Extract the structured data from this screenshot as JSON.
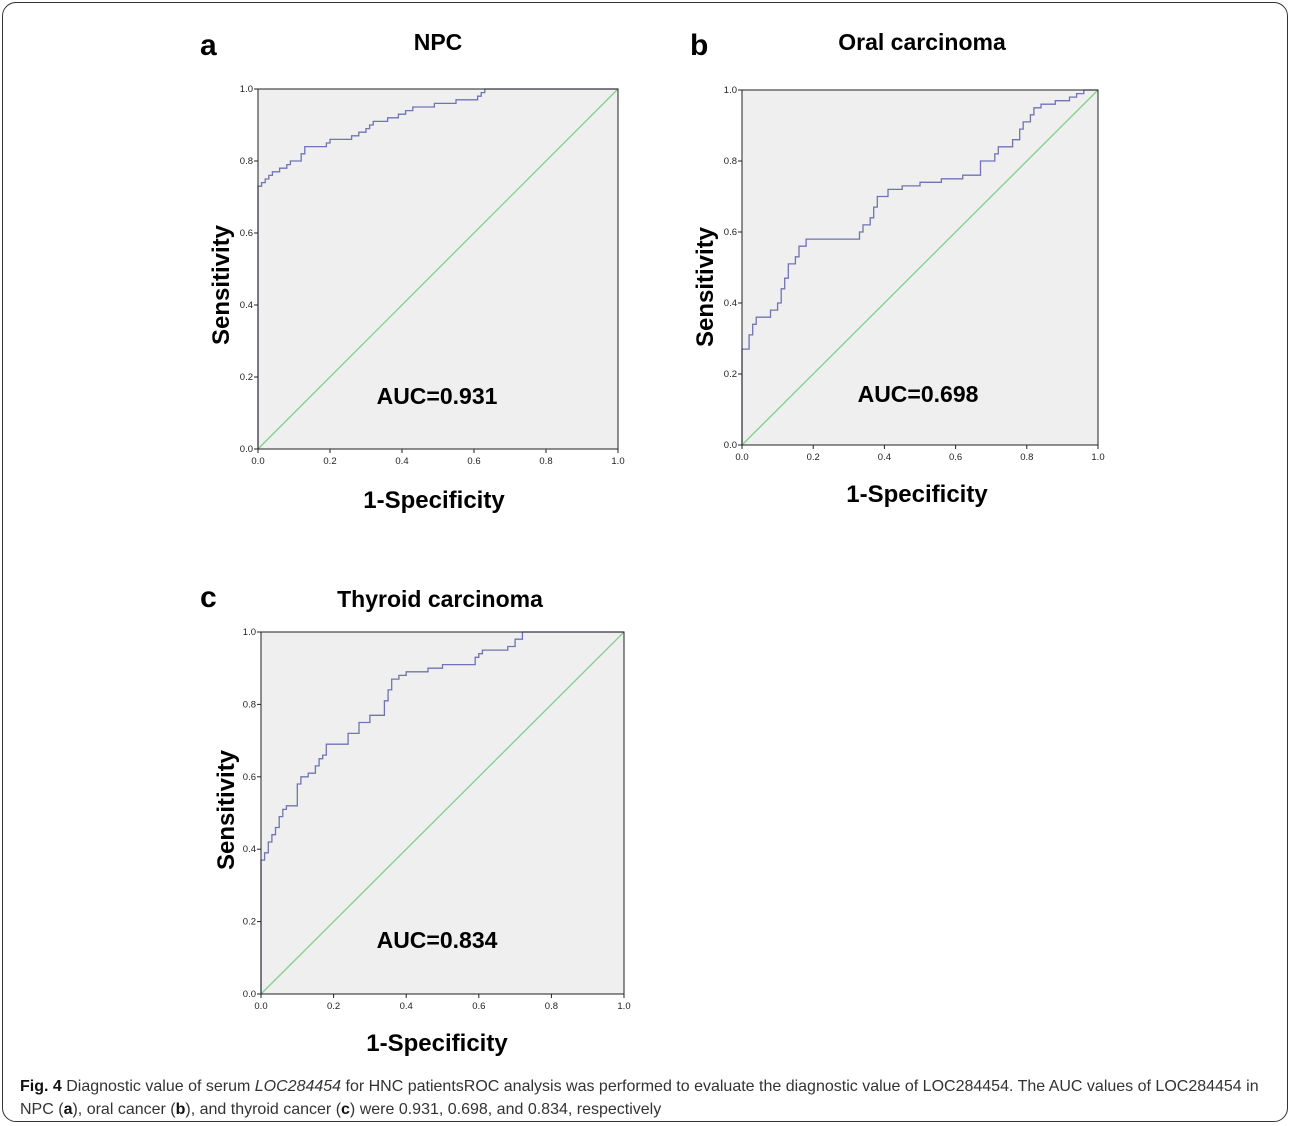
{
  "chart_data": [
    {
      "type": "line",
      "panel_letter": "a",
      "title": "NPC",
      "xlabel": "1-Specificity",
      "ylabel": "Sensitivity",
      "annotation": "AUC=0.931",
      "xlim": [
        0.0,
        1.0
      ],
      "ylim": [
        0.0,
        1.0
      ],
      "xticks": [
        "0.0",
        "0.2",
        "0.4",
        "0.6",
        "0.8",
        "1.0"
      ],
      "yticks": [
        "0.0",
        "0.2",
        "0.4",
        "0.6",
        "0.8",
        "1.0"
      ],
      "grid": false,
      "series": [
        {
          "color": "#6f74b4",
          "points": [
            [
              0,
              0
            ],
            [
              0,
              0.73
            ],
            [
              0.01,
              0.73
            ],
            [
              0.01,
              0.74
            ],
            [
              0.02,
              0.74
            ],
            [
              0.02,
              0.75
            ],
            [
              0.03,
              0.75
            ],
            [
              0.03,
              0.76
            ],
            [
              0.04,
              0.76
            ],
            [
              0.04,
              0.77
            ],
            [
              0.06,
              0.77
            ],
            [
              0.06,
              0.78
            ],
            [
              0.08,
              0.78
            ],
            [
              0.08,
              0.79
            ],
            [
              0.09,
              0.79
            ],
            [
              0.09,
              0.8
            ],
            [
              0.12,
              0.8
            ],
            [
              0.12,
              0.82
            ],
            [
              0.13,
              0.82
            ],
            [
              0.13,
              0.84
            ],
            [
              0.19,
              0.84
            ],
            [
              0.19,
              0.85
            ],
            [
              0.2,
              0.85
            ],
            [
              0.2,
              0.86
            ],
            [
              0.26,
              0.86
            ],
            [
              0.26,
              0.87
            ],
            [
              0.28,
              0.87
            ],
            [
              0.28,
              0.88
            ],
            [
              0.3,
              0.88
            ],
            [
              0.3,
              0.89
            ],
            [
              0.31,
              0.89
            ],
            [
              0.31,
              0.9
            ],
            [
              0.32,
              0.9
            ],
            [
              0.32,
              0.91
            ],
            [
              0.36,
              0.91
            ],
            [
              0.36,
              0.92
            ],
            [
              0.39,
              0.92
            ],
            [
              0.39,
              0.93
            ],
            [
              0.41,
              0.93
            ],
            [
              0.41,
              0.94
            ],
            [
              0.43,
              0.94
            ],
            [
              0.43,
              0.95
            ],
            [
              0.49,
              0.95
            ],
            [
              0.49,
              0.96
            ],
            [
              0.55,
              0.96
            ],
            [
              0.55,
              0.97
            ],
            [
              0.61,
              0.97
            ],
            [
              0.61,
              0.98
            ],
            [
              0.62,
              0.98
            ],
            [
              0.62,
              0.99
            ],
            [
              0.63,
              0.99
            ],
            [
              0.63,
              1.0
            ],
            [
              1.0,
              1.0
            ]
          ]
        },
        {
          "color": "#7fd18a",
          "points": [
            [
              0,
              0
            ],
            [
              1,
              1
            ]
          ]
        }
      ]
    },
    {
      "type": "line",
      "panel_letter": "b",
      "title": "Oral  carcinoma",
      "xlabel": "1-Specificity",
      "ylabel": "Sensitivity",
      "annotation": "AUC=0.698",
      "xlim": [
        0.0,
        1.0
      ],
      "ylim": [
        0.0,
        1.0
      ],
      "xticks": [
        "0.0",
        "0.2",
        "0.4",
        "0.6",
        "0.8",
        "1.0"
      ],
      "yticks": [
        "0.0",
        "0.2",
        "0.4",
        "0.6",
        "0.8",
        "1.0"
      ],
      "grid": false,
      "series": [
        {
          "color": "#6f74b4",
          "points": [
            [
              0,
              0
            ],
            [
              0,
              0.27
            ],
            [
              0.02,
              0.27
            ],
            [
              0.02,
              0.31
            ],
            [
              0.03,
              0.31
            ],
            [
              0.03,
              0.34
            ],
            [
              0.04,
              0.34
            ],
            [
              0.04,
              0.36
            ],
            [
              0.08,
              0.36
            ],
            [
              0.08,
              0.38
            ],
            [
              0.1,
              0.38
            ],
            [
              0.1,
              0.4
            ],
            [
              0.11,
              0.4
            ],
            [
              0.11,
              0.44
            ],
            [
              0.12,
              0.44
            ],
            [
              0.12,
              0.47
            ],
            [
              0.13,
              0.47
            ],
            [
              0.13,
              0.51
            ],
            [
              0.15,
              0.51
            ],
            [
              0.15,
              0.53
            ],
            [
              0.16,
              0.53
            ],
            [
              0.16,
              0.56
            ],
            [
              0.18,
              0.56
            ],
            [
              0.18,
              0.58
            ],
            [
              0.33,
              0.58
            ],
            [
              0.33,
              0.6
            ],
            [
              0.34,
              0.6
            ],
            [
              0.34,
              0.62
            ],
            [
              0.36,
              0.62
            ],
            [
              0.36,
              0.64
            ],
            [
              0.37,
              0.64
            ],
            [
              0.37,
              0.67
            ],
            [
              0.38,
              0.67
            ],
            [
              0.38,
              0.7
            ],
            [
              0.41,
              0.7
            ],
            [
              0.41,
              0.72
            ],
            [
              0.45,
              0.72
            ],
            [
              0.45,
              0.73
            ],
            [
              0.5,
              0.73
            ],
            [
              0.5,
              0.74
            ],
            [
              0.56,
              0.74
            ],
            [
              0.56,
              0.75
            ],
            [
              0.62,
              0.75
            ],
            [
              0.62,
              0.76
            ],
            [
              0.67,
              0.76
            ],
            [
              0.67,
              0.8
            ],
            [
              0.71,
              0.8
            ],
            [
              0.71,
              0.82
            ],
            [
              0.72,
              0.82
            ],
            [
              0.72,
              0.84
            ],
            [
              0.76,
              0.84
            ],
            [
              0.76,
              0.86
            ],
            [
              0.78,
              0.86
            ],
            [
              0.78,
              0.89
            ],
            [
              0.79,
              0.89
            ],
            [
              0.79,
              0.91
            ],
            [
              0.81,
              0.91
            ],
            [
              0.81,
              0.93
            ],
            [
              0.82,
              0.93
            ],
            [
              0.82,
              0.95
            ],
            [
              0.84,
              0.95
            ],
            [
              0.84,
              0.96
            ],
            [
              0.88,
              0.96
            ],
            [
              0.88,
              0.97
            ],
            [
              0.92,
              0.97
            ],
            [
              0.92,
              0.98
            ],
            [
              0.94,
              0.98
            ],
            [
              0.94,
              0.99
            ],
            [
              0.96,
              0.99
            ],
            [
              0.96,
              1.0
            ],
            [
              1.0,
              1.0
            ]
          ]
        },
        {
          "color": "#7fd18a",
          "points": [
            [
              0,
              0
            ],
            [
              1,
              1
            ]
          ]
        }
      ]
    },
    {
      "type": "line",
      "panel_letter": "c",
      "title": "Thyroid carcinoma",
      "xlabel": "1-Specificity",
      "ylabel": "Sensitivity",
      "annotation": "AUC=0.834",
      "xlim": [
        0.0,
        1.0
      ],
      "ylim": [
        0.0,
        1.0
      ],
      "xticks": [
        "0.0",
        "0.2",
        "0.4",
        "0.6",
        "0.8",
        "1.0"
      ],
      "yticks": [
        "0.0",
        "0.2",
        "0.4",
        "0.6",
        "0.8",
        "1.0"
      ],
      "grid": false,
      "series": [
        {
          "color": "#6f74b4",
          "points": [
            [
              0,
              0
            ],
            [
              0,
              0.37
            ],
            [
              0.01,
              0.37
            ],
            [
              0.01,
              0.39
            ],
            [
              0.02,
              0.39
            ],
            [
              0.02,
              0.42
            ],
            [
              0.03,
              0.42
            ],
            [
              0.03,
              0.44
            ],
            [
              0.04,
              0.44
            ],
            [
              0.04,
              0.46
            ],
            [
              0.05,
              0.46
            ],
            [
              0.05,
              0.49
            ],
            [
              0.06,
              0.49
            ],
            [
              0.06,
              0.51
            ],
            [
              0.07,
              0.51
            ],
            [
              0.07,
              0.52
            ],
            [
              0.1,
              0.52
            ],
            [
              0.1,
              0.58
            ],
            [
              0.11,
              0.58
            ],
            [
              0.11,
              0.6
            ],
            [
              0.13,
              0.6
            ],
            [
              0.13,
              0.61
            ],
            [
              0.15,
              0.61
            ],
            [
              0.15,
              0.63
            ],
            [
              0.16,
              0.63
            ],
            [
              0.16,
              0.65
            ],
            [
              0.17,
              0.65
            ],
            [
              0.17,
              0.66
            ],
            [
              0.18,
              0.66
            ],
            [
              0.18,
              0.69
            ],
            [
              0.24,
              0.69
            ],
            [
              0.24,
              0.72
            ],
            [
              0.27,
              0.72
            ],
            [
              0.27,
              0.75
            ],
            [
              0.3,
              0.75
            ],
            [
              0.3,
              0.77
            ],
            [
              0.34,
              0.77
            ],
            [
              0.34,
              0.81
            ],
            [
              0.35,
              0.81
            ],
            [
              0.35,
              0.84
            ],
            [
              0.36,
              0.84
            ],
            [
              0.36,
              0.87
            ],
            [
              0.38,
              0.87
            ],
            [
              0.38,
              0.88
            ],
            [
              0.4,
              0.88
            ],
            [
              0.4,
              0.89
            ],
            [
              0.46,
              0.89
            ],
            [
              0.46,
              0.9
            ],
            [
              0.5,
              0.9
            ],
            [
              0.5,
              0.91
            ],
            [
              0.59,
              0.91
            ],
            [
              0.59,
              0.93
            ],
            [
              0.6,
              0.93
            ],
            [
              0.6,
              0.94
            ],
            [
              0.61,
              0.94
            ],
            [
              0.61,
              0.95
            ],
            [
              0.68,
              0.95
            ],
            [
              0.68,
              0.96
            ],
            [
              0.7,
              0.96
            ],
            [
              0.7,
              0.98
            ],
            [
              0.72,
              0.98
            ],
            [
              0.72,
              1.0
            ],
            [
              1.0,
              1.0
            ]
          ]
        },
        {
          "color": "#7fd18a",
          "points": [
            [
              0,
              0
            ],
            [
              1,
              1
            ]
          ]
        }
      ]
    }
  ],
  "caption": {
    "fig_label": "Fig. 4",
    "t1": " Diagnostic value of serum ",
    "gene_italic": "LOC284454",
    "t2": " for HNC patientsROC analysis was performed to evaluate the diagnostic value of LOC284454. The AUC values of LOC284454 in NPC (",
    "a": "a",
    "t3": "), oral cancer (",
    "b": "b",
    "t4": "), and thyroid cancer (",
    "c": "c",
    "t5": ") were 0.931, 0.698, and 0.834, respectively"
  }
}
